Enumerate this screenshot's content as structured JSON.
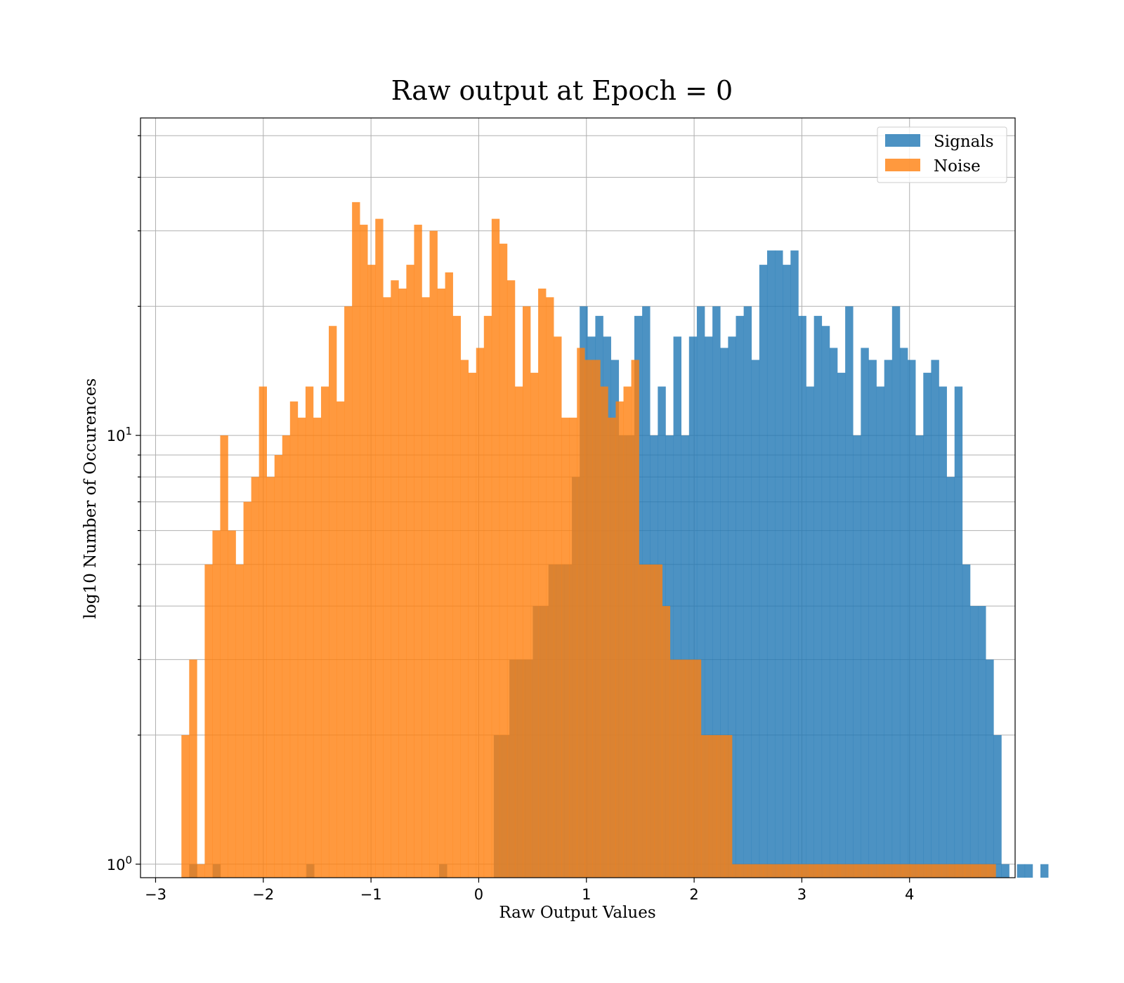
{
  "chart_data": {
    "type": "histogram",
    "title": "Raw output at Epoch = 0",
    "xlabel": "Raw Output Values",
    "ylabel": "log10 Number of Occurences",
    "yscale": "log",
    "xlim": [
      -3.14,
      4.98
    ],
    "ylim": [
      0.93,
      55
    ],
    "grid": true,
    "legend_position": "top-right",
    "x_ticks": [
      {
        "value": -3,
        "label": "−3"
      },
      {
        "value": -2,
        "label": "−2"
      },
      {
        "value": -1,
        "label": "−1"
      },
      {
        "value": 0,
        "label": "0"
      },
      {
        "value": 1,
        "label": "1"
      },
      {
        "value": 2,
        "label": "2"
      },
      {
        "value": 3,
        "label": "3"
      },
      {
        "value": 4,
        "label": "4"
      }
    ],
    "y_major_ticks": [
      {
        "value": 1,
        "base": "10",
        "exp": "0"
      },
      {
        "value": 10,
        "base": "10",
        "exp": "1"
      }
    ],
    "y_minor_ticks": [
      2,
      3,
      4,
      5,
      6,
      7,
      8,
      9,
      20,
      30,
      40,
      50
    ],
    "series": [
      {
        "name": "Signals",
        "color": "#1f77b4",
        "opacity": 0.8,
        "bin_start": -2.76,
        "bin_width": 0.0725,
        "counts": [
          0,
          1,
          0,
          0,
          1,
          0,
          0,
          0,
          0,
          0,
          0,
          0,
          0,
          0,
          0,
          0,
          1,
          0,
          0,
          0,
          0,
          0,
          0,
          0,
          0,
          0,
          0,
          0,
          0,
          0,
          0,
          0,
          0,
          1,
          0,
          0,
          0,
          0,
          0,
          0,
          2,
          2,
          3,
          3,
          3,
          4,
          4,
          5,
          5,
          5,
          8,
          20,
          17,
          19,
          17,
          15,
          10,
          10,
          19,
          20,
          10,
          13,
          10,
          17,
          10,
          17,
          20,
          17,
          20,
          16,
          17,
          19,
          20,
          15,
          25,
          27,
          27,
          25,
          27,
          19,
          13,
          19,
          18,
          16,
          14,
          20,
          10,
          16,
          15,
          13,
          15,
          20,
          16,
          15,
          10,
          14,
          15,
          13,
          8,
          13,
          5,
          4,
          4,
          3,
          2,
          1,
          0,
          1,
          1,
          0,
          1
        ],
        "legend_label": "Signals"
      },
      {
        "name": "Noise",
        "color": "#ff7f0e",
        "opacity": 0.8,
        "bin_start": -2.76,
        "bin_width": 0.072,
        "counts": [
          2,
          3,
          1,
          5,
          6,
          10,
          6,
          5,
          7,
          8,
          13,
          8,
          9,
          10,
          12,
          11,
          13,
          11,
          13,
          18,
          12,
          20,
          35,
          31,
          25,
          32,
          21,
          23,
          22,
          25,
          31,
          21,
          30,
          22,
          24,
          19,
          15,
          14,
          16,
          19,
          32,
          28,
          23,
          13,
          20,
          14,
          22,
          21,
          17,
          11,
          11,
          16,
          15,
          15,
          13,
          11,
          12,
          13,
          15,
          5,
          5,
          5,
          4,
          3,
          3,
          3,
          3,
          2,
          2,
          2,
          2,
          1,
          1,
          1,
          1,
          1,
          1,
          1,
          1,
          1,
          1,
          1,
          1,
          1,
          1,
          1,
          1,
          1,
          1,
          1,
          1,
          1,
          1,
          1,
          1,
          1,
          1,
          1,
          1,
          1,
          1,
          1,
          1,
          1,
          1
        ],
        "legend_label": "Noise"
      }
    ]
  }
}
